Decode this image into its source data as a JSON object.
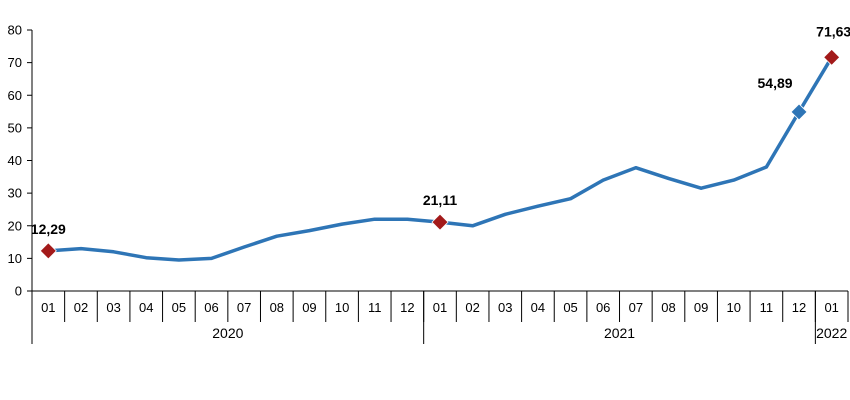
{
  "chart_data": {
    "type": "line",
    "ylim": [
      0,
      80
    ],
    "yticks": [
      0,
      10,
      20,
      30,
      40,
      50,
      60,
      70,
      80
    ],
    "categories": [
      "01",
      "02",
      "03",
      "04",
      "05",
      "06",
      "07",
      "08",
      "09",
      "10",
      "11",
      "12",
      "01",
      "02",
      "03",
      "04",
      "05",
      "06",
      "07",
      "08",
      "09",
      "10",
      "11",
      "12",
      "01"
    ],
    "groups": [
      {
        "label": "2020",
        "start": 0,
        "end": 11
      },
      {
        "label": "2021",
        "start": 12,
        "end": 23
      },
      {
        "label": "2022",
        "start": 24,
        "end": 24
      }
    ],
    "series": [
      {
        "values": [
          12.29,
          13.0,
          12.0,
          10.2,
          9.5,
          10.0,
          13.5,
          16.8,
          18.5,
          20.5,
          22.0,
          22.0,
          21.11,
          20.0,
          23.5,
          26.0,
          28.3,
          34.0,
          37.8,
          34.5,
          31.5,
          34.0,
          38.0,
          54.89,
          71.63
        ],
        "color": "#2E75B6"
      }
    ],
    "highlights": [
      {
        "index": 0,
        "label": "12,29",
        "color": "#A31A1A"
      },
      {
        "index": 12,
        "label": "21,11",
        "color": "#A31A1A"
      },
      {
        "index": 23,
        "label": "54,89",
        "color": "#2E75B6"
      },
      {
        "index": 24,
        "label": "71,63",
        "color": "#A31A1A"
      }
    ],
    "grid": false
  }
}
